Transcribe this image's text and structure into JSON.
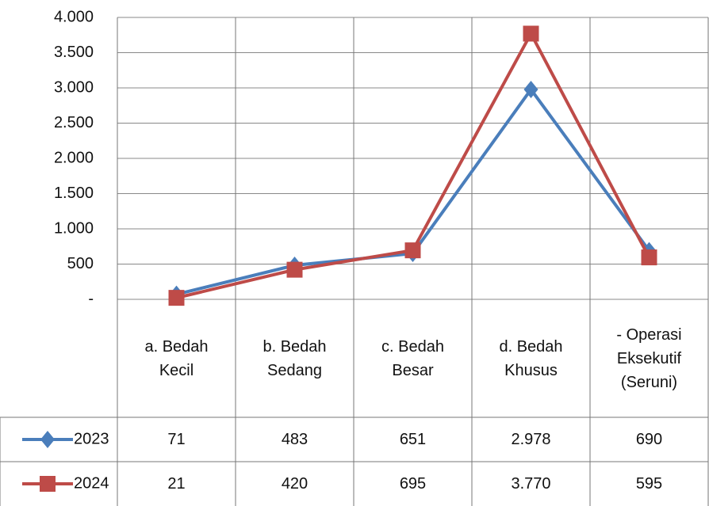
{
  "chart_data": {
    "type": "line",
    "categories": [
      "a. Bedah Kecil",
      "b. Bedah Sedang",
      "c. Bedah Besar",
      "d. Bedah Khusus",
      "- Operasi Eksekutif (Seruni)"
    ],
    "series": [
      {
        "name": "2023",
        "color": "#4a7ebb",
        "marker": "diamond",
        "values": [
          71,
          483,
          651,
          2978,
          690
        ],
        "value_labels": [
          "71",
          "483",
          "651",
          "2.978",
          "690"
        ]
      },
      {
        "name": "2024",
        "color": "#be4b48",
        "marker": "square",
        "values": [
          21,
          420,
          695,
          3770,
          595
        ],
        "value_labels": [
          "21",
          "420",
          "695",
          "3.770",
          "595"
        ]
      }
    ],
    "ylim": [
      0,
      4000
    ],
    "yticks": [
      {
        "value": 0,
        "label": "-"
      },
      500,
      {
        "value": 1000,
        "label": "1.000"
      },
      {
        "value": 1500,
        "label": "1.500"
      },
      {
        "value": 2000,
        "label": "2.000"
      },
      {
        "value": 2500,
        "label": "2.500"
      },
      {
        "value": 3000,
        "label": "3.000"
      },
      {
        "value": 3500,
        "label": "3.500"
      },
      {
        "value": 4000,
        "label": "4.000"
      }
    ],
    "grid": true
  }
}
